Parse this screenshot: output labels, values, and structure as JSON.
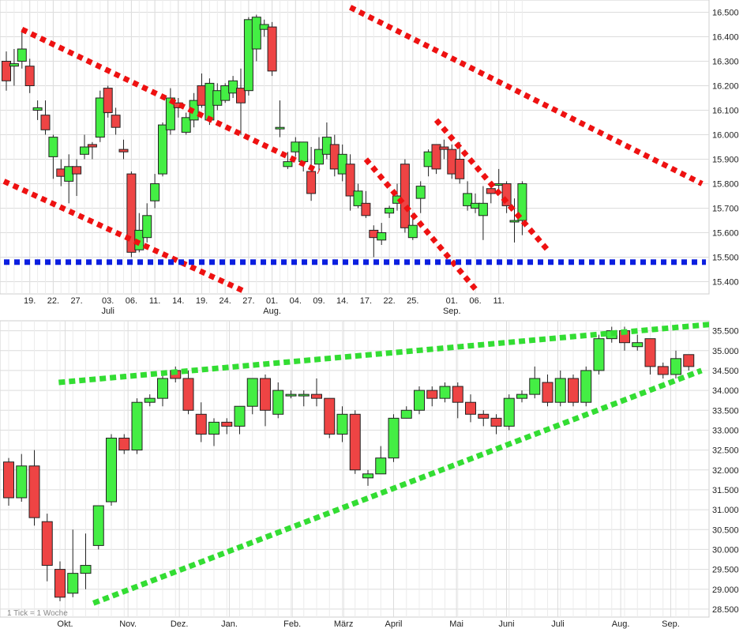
{
  "colors": {
    "up": "#44ee44",
    "down": "#ee4444",
    "grid": "#dcdcdc",
    "red_trend": "#ee1111",
    "blue_support": "#0a1ee0",
    "green_trend": "#33dd33"
  },
  "chart_data": [
    {
      "type": "candlestick",
      "name": "daily",
      "ylim": [
        15.35,
        16.55
      ],
      "y_ticks": [
        "15.400",
        "15.500",
        "15.600",
        "15.700",
        "15.800",
        "15.900",
        "16.000",
        "16.100",
        "16.200",
        "16.300",
        "16.400",
        "16.500"
      ],
      "x_ticks": [
        "19.",
        "22.",
        "27.",
        "03.",
        "06.",
        "11.",
        "14.",
        "19.",
        "24.",
        "27.",
        "01.",
        "04.",
        "09.",
        "14.",
        "17.",
        "22.",
        "25.",
        "01.",
        "06.",
        "11."
      ],
      "x_tick_index": [
        3,
        6,
        9,
        13,
        16,
        19,
        22,
        25,
        28,
        31,
        34,
        37,
        40,
        43,
        46,
        49,
        52,
        57,
        60,
        63
      ],
      "month_labels": [
        {
          "label": "Juli",
          "index": 13
        },
        {
          "label": "Aug.",
          "index": 34
        },
        {
          "label": "Sep.",
          "index": 57
        }
      ],
      "candles": [
        [
          16.3,
          16.22,
          16.34,
          16.18
        ],
        [
          16.28,
          16.29,
          16.35,
          16.2
        ],
        [
          16.3,
          16.35,
          16.43,
          16.27
        ],
        [
          16.28,
          16.2,
          16.31,
          16.17
        ],
        [
          16.1,
          16.11,
          16.14,
          16.06
        ],
        [
          16.08,
          16.02,
          16.14,
          16.0
        ],
        [
          15.91,
          15.99,
          16.0,
          15.82
        ],
        [
          15.86,
          15.83,
          15.9,
          15.79
        ],
        [
          15.81,
          15.87,
          15.92,
          15.72
        ],
        [
          15.87,
          15.84,
          15.9,
          15.75
        ],
        [
          15.92,
          15.95,
          16.0,
          15.9
        ],
        [
          15.96,
          15.95,
          15.97,
          15.9
        ],
        [
          15.99,
          16.15,
          16.18,
          15.97
        ],
        [
          16.19,
          16.09,
          16.2,
          16.07
        ],
        [
          16.08,
          16.03,
          16.11,
          16.0
        ],
        [
          15.94,
          15.93,
          15.98,
          15.9
        ],
        [
          15.84,
          15.52,
          15.85,
          15.5
        ],
        [
          15.53,
          15.61,
          15.68,
          15.52
        ],
        [
          15.58,
          15.67,
          15.72,
          15.56
        ],
        [
          15.73,
          15.8,
          15.84,
          15.7
        ],
        [
          15.84,
          16.04,
          16.05,
          15.83
        ],
        [
          16.02,
          16.15,
          16.19,
          16.0
        ],
        [
          16.13,
          16.11,
          16.15,
          16.07
        ],
        [
          16.01,
          16.07,
          16.09,
          16.0
        ],
        [
          16.06,
          16.14,
          16.17,
          16.03
        ],
        [
          16.2,
          16.12,
          16.25,
          16.11
        ],
        [
          16.06,
          16.21,
          16.23,
          16.04
        ],
        [
          16.12,
          16.18,
          16.21,
          16.1
        ],
        [
          16.14,
          16.2,
          16.21,
          16.13
        ],
        [
          16.17,
          16.22,
          16.24,
          16.15
        ],
        [
          16.19,
          16.13,
          16.27,
          16.0
        ],
        [
          16.18,
          16.47,
          16.48,
          16.16
        ],
        [
          16.35,
          16.48,
          16.49,
          16.3
        ],
        [
          16.43,
          16.45,
          16.47,
          16.4
        ],
        [
          16.44,
          16.26,
          16.46,
          16.24
        ],
        [
          16.03,
          16.03,
          16.14,
          15.99
        ],
        [
          15.87,
          15.89,
          15.93,
          15.86
        ],
        [
          15.93,
          15.97,
          15.99,
          15.91
        ],
        [
          15.89,
          15.97,
          15.97,
          15.85
        ],
        [
          15.85,
          15.76,
          15.95,
          15.73
        ],
        [
          15.88,
          15.94,
          15.99,
          15.85
        ],
        [
          15.92,
          15.99,
          16.05,
          15.9
        ],
        [
          15.96,
          15.86,
          16.0,
          15.83
        ],
        [
          15.84,
          15.92,
          15.96,
          15.81
        ],
        [
          15.88,
          15.75,
          15.92,
          15.69
        ],
        [
          15.71,
          15.77,
          15.8,
          15.7
        ],
        [
          15.72,
          15.67,
          15.77,
          15.66
        ],
        [
          15.61,
          15.58,
          15.63,
          15.5
        ],
        [
          15.57,
          15.6,
          15.64,
          15.55
        ],
        [
          15.68,
          15.7,
          15.71,
          15.66
        ],
        [
          15.72,
          15.75,
          15.8,
          15.69
        ],
        [
          15.88,
          15.62,
          15.9,
          15.6
        ],
        [
          15.58,
          15.63,
          15.68,
          15.57
        ],
        [
          15.74,
          15.79,
          15.81,
          15.68
        ],
        [
          15.87,
          15.93,
          15.94,
          15.83
        ],
        [
          15.96,
          15.86,
          15.96,
          15.84
        ],
        [
          15.95,
          15.94,
          15.98,
          15.9
        ],
        [
          15.94,
          15.84,
          15.96,
          15.82
        ],
        [
          15.9,
          15.82,
          15.97,
          15.8
        ],
        [
          15.71,
          15.76,
          15.81,
          15.69
        ],
        [
          15.7,
          15.72,
          15.76,
          15.68
        ],
        [
          15.67,
          15.72,
          15.79,
          15.57
        ],
        [
          15.78,
          15.76,
          15.8,
          15.72
        ],
        [
          15.8,
          15.8,
          15.86,
          15.77
        ],
        [
          15.8,
          15.71,
          15.81,
          15.68
        ],
        [
          15.65,
          15.65,
          15.74,
          15.56
        ],
        [
          15.65,
          15.8,
          15.81,
          15.59
        ]
      ],
      "lines": [
        {
          "name": "upper-red-trend-1",
          "color": "red_trend",
          "kind": "dotted-red",
          "points": [
            [
              2,
              16.43
            ],
            [
              40,
              15.85
            ]
          ]
        },
        {
          "name": "upper-red-trend-2",
          "color": "red_trend",
          "kind": "dotted-red",
          "points": [
            [
              44,
              16.52
            ],
            [
              89,
              15.8
            ]
          ]
        },
        {
          "name": "lower-red-trend-1",
          "color": "red_trend",
          "kind": "dotted-red",
          "points": [
            [
              -0.3,
              15.81
            ],
            [
              30.5,
              15.36
            ]
          ]
        },
        {
          "name": "lower-red-trend-2",
          "color": "red_trend",
          "kind": "dotted-red",
          "points": [
            [
              46,
              15.9
            ],
            [
              60,
              15.37
            ]
          ]
        },
        {
          "name": "mid-red-trend",
          "color": "red_trend",
          "kind": "dotted-red",
          "points": [
            [
              55,
              16.06
            ],
            [
              69.5,
              15.52
            ]
          ]
        },
        {
          "name": "blue-support",
          "color": "blue_support",
          "kind": "dotted-blue",
          "points": [
            [
              -0.3,
              15.48
            ],
            [
              89.5,
              15.48
            ]
          ]
        }
      ]
    },
    {
      "type": "candlestick",
      "name": "weekly",
      "ylim": [
        28.3,
        35.75
      ],
      "y_ticks": [
        "28.500",
        "29.000",
        "29.500",
        "30.000",
        "30.500",
        "31.000",
        "31.500",
        "32.000",
        "32.500",
        "33.000",
        "33.500",
        "34.000",
        "34.500",
        "35.000",
        "35.500"
      ],
      "x_ticks": [
        "Okt.",
        "Nov.",
        "Dez.",
        "Jan.",
        "Feb.",
        "März",
        "April",
        "Mai",
        "Juni",
        "Juli",
        "Aug.",
        "Sep."
      ],
      "x_tick_index": [
        4.4,
        9.3,
        13.3,
        17.2,
        22.1,
        26.1,
        30.0,
        34.9,
        38.8,
        42.8,
        47.7,
        51.6
      ],
      "note": "1 Tick = 1 Woche",
      "candles": [
        [
          32.2,
          31.3,
          32.3,
          31.1
        ],
        [
          31.3,
          32.1,
          32.4,
          31.2
        ],
        [
          32.1,
          30.8,
          32.5,
          30.6
        ],
        [
          30.7,
          29.6,
          30.9,
          29.2
        ],
        [
          29.5,
          28.8,
          29.7,
          28.7
        ],
        [
          28.9,
          29.4,
          30.5,
          28.8
        ],
        [
          29.4,
          29.6,
          30.4,
          29.0
        ],
        [
          30.1,
          31.1,
          31.1,
          30.0
        ],
        [
          31.2,
          32.8,
          32.9,
          31.1
        ],
        [
          32.8,
          32.5,
          32.9,
          32.4
        ],
        [
          32.5,
          33.7,
          33.8,
          32.4
        ],
        [
          33.7,
          33.8,
          33.9,
          33.6
        ],
        [
          33.8,
          34.3,
          34.5,
          33.6
        ],
        [
          34.5,
          34.3,
          34.6,
          34.2
        ],
        [
          34.3,
          33.5,
          34.5,
          33.4
        ],
        [
          33.4,
          32.9,
          33.7,
          32.7
        ],
        [
          32.9,
          33.2,
          33.3,
          32.6
        ],
        [
          33.2,
          33.1,
          33.3,
          32.9
        ],
        [
          33.1,
          33.6,
          33.6,
          32.9
        ],
        [
          33.6,
          34.3,
          34.3,
          33.4
        ],
        [
          34.3,
          33.5,
          34.4,
          33.1
        ],
        [
          33.4,
          34.0,
          34.2,
          33.3
        ],
        [
          33.9,
          33.9,
          34.0,
          33.8
        ],
        [
          33.9,
          33.9,
          34.0,
          33.6
        ],
        [
          33.9,
          33.8,
          34.3,
          33.6
        ],
        [
          33.8,
          32.9,
          33.8,
          32.8
        ],
        [
          32.9,
          33.4,
          33.6,
          32.7
        ],
        [
          33.4,
          32.0,
          33.5,
          31.9
        ],
        [
          31.8,
          31.9,
          32.0,
          31.6
        ],
        [
          31.9,
          32.3,
          32.6,
          31.9
        ],
        [
          32.3,
          33.3,
          33.4,
          32.2
        ],
        [
          33.3,
          33.5,
          33.6,
          33.3
        ],
        [
          33.5,
          34.0,
          34.1,
          33.4
        ],
        [
          34.0,
          33.8,
          34.1,
          33.6
        ],
        [
          33.8,
          34.1,
          34.2,
          33.7
        ],
        [
          34.1,
          33.7,
          34.2,
          33.3
        ],
        [
          33.7,
          33.4,
          33.9,
          33.2
        ],
        [
          33.4,
          33.3,
          33.5,
          33.1
        ],
        [
          33.3,
          33.1,
          33.4,
          32.9
        ],
        [
          33.1,
          33.8,
          33.9,
          33.0
        ],
        [
          33.8,
          33.9,
          34.0,
          33.7
        ],
        [
          33.9,
          34.3,
          34.6,
          33.8
        ],
        [
          34.2,
          33.7,
          34.4,
          33.6
        ],
        [
          33.7,
          34.3,
          34.5,
          33.6
        ],
        [
          34.3,
          33.7,
          34.4,
          33.6
        ],
        [
          33.7,
          34.5,
          34.6,
          33.6
        ],
        [
          34.5,
          35.3,
          35.4,
          34.4
        ],
        [
          35.3,
          35.5,
          35.6,
          35.2
        ],
        [
          35.5,
          35.2,
          35.6,
          35.0
        ],
        [
          35.1,
          35.2,
          35.4,
          35.0
        ],
        [
          35.3,
          34.6,
          35.3,
          34.4
        ],
        [
          34.6,
          34.4,
          34.7,
          34.3
        ],
        [
          34.4,
          34.8,
          35.0,
          34.3
        ],
        [
          34.9,
          34.6,
          34.9,
          34.5
        ]
      ],
      "lines": [
        {
          "name": "upper-green-trend",
          "color": "green_trend",
          "kind": "dotted-green",
          "points": [
            [
              3.9,
              34.2
            ],
            [
              56.1,
              35.7
            ]
          ]
        },
        {
          "name": "lower-green-trend",
          "color": "green_trend",
          "kind": "dotted-green",
          "points": [
            [
              6.6,
              28.65
            ],
            [
              54.0,
              34.5
            ]
          ]
        }
      ]
    }
  ]
}
